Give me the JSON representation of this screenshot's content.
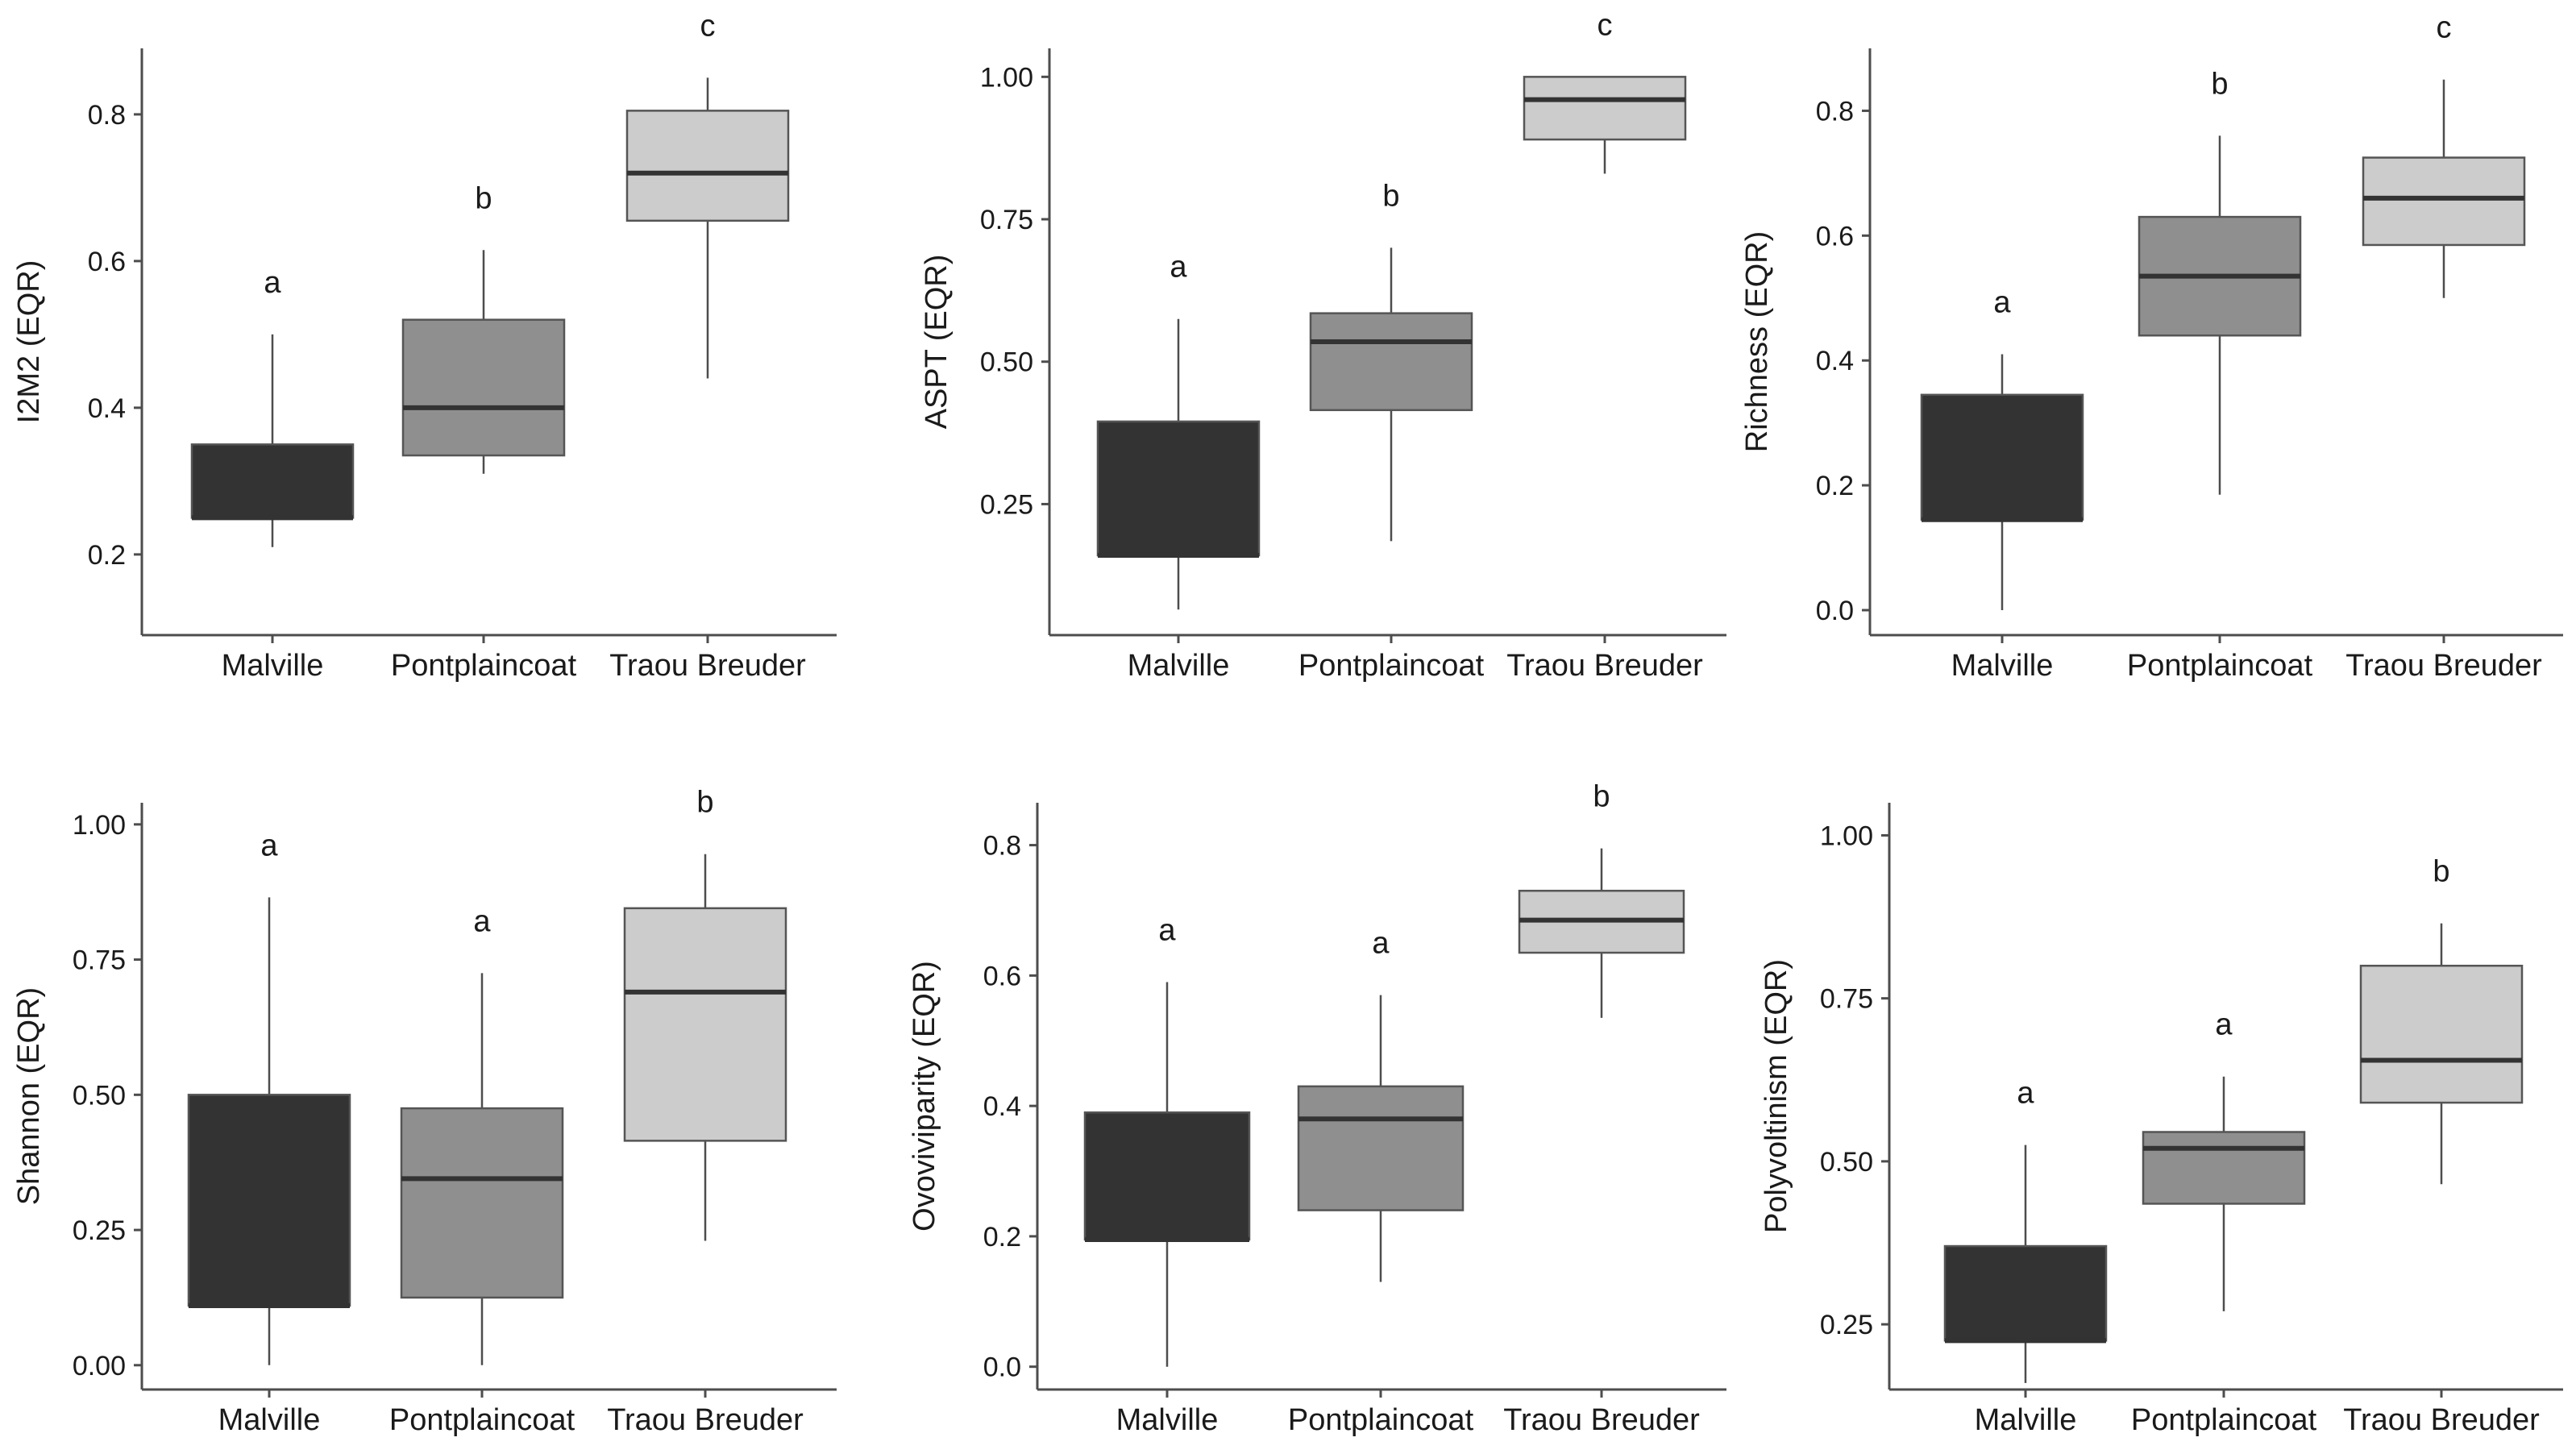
{
  "colors": {
    "Malville": "#333333",
    "Pontplaincoat": "#8f8f8f",
    "Traou Breuder": "#cccccc",
    "axis": "#4d4d4d",
    "median": "#333333"
  },
  "chart_data": [
    {
      "type": "boxplot",
      "ylabel": "I2M2 (EQR)",
      "categories": [
        "Malville",
        "Pontplaincoat",
        "Traou Breuder"
      ],
      "ylim": [
        0.09,
        0.89
      ],
      "yticks": [
        0.2,
        0.4,
        0.6,
        0.8
      ],
      "yticklabels": [
        "0.2",
        "0.4",
        "0.6",
        "0.8"
      ],
      "boxes": [
        {
          "min": 0.21,
          "q1": 0.25,
          "median": 0.25,
          "q3": 0.35,
          "max": 0.5
        },
        {
          "min": 0.31,
          "q1": 0.335,
          "median": 0.4,
          "q3": 0.52,
          "max": 0.615
        },
        {
          "min": 0.44,
          "q1": 0.655,
          "median": 0.72,
          "q3": 0.805,
          "max": 0.85
        }
      ],
      "letters": [
        "a",
        "b",
        "c"
      ]
    },
    {
      "type": "boxplot",
      "ylabel": "ASPT (EQR)",
      "categories": [
        "Malville",
        "Pontplaincoat",
        "Traou Breuder"
      ],
      "ylim": [
        0.02,
        1.05
      ],
      "yticks": [
        0.25,
        0.5,
        0.75,
        1.0
      ],
      "yticklabels": [
        "0.25",
        "0.50",
        "0.75",
        "1.00"
      ],
      "boxes": [
        {
          "min": 0.065,
          "q1": 0.16,
          "median": 0.16,
          "q3": 0.395,
          "max": 0.575
        },
        {
          "min": 0.185,
          "q1": 0.415,
          "median": 0.535,
          "q3": 0.585,
          "max": 0.7
        },
        {
          "min": 0.83,
          "q1": 0.89,
          "median": 0.96,
          "q3": 1.0,
          "max": 1.0
        }
      ],
      "letters": [
        "a",
        "b",
        "c"
      ]
    },
    {
      "type": "boxplot",
      "ylabel": "Richness (EQR)",
      "categories": [
        "Malville",
        "Pontplaincoat",
        "Traou Breuder"
      ],
      "ylim": [
        -0.04,
        0.9
      ],
      "yticks": [
        0.0,
        0.2,
        0.4,
        0.6,
        0.8
      ],
      "yticklabels": [
        "0.0",
        "0.2",
        "0.4",
        "0.6",
        "0.8"
      ],
      "boxes": [
        {
          "min": 0.0,
          "q1": 0.145,
          "median": 0.145,
          "q3": 0.345,
          "max": 0.41
        },
        {
          "min": 0.185,
          "q1": 0.44,
          "median": 0.535,
          "q3": 0.63,
          "max": 0.76
        },
        {
          "min": 0.5,
          "q1": 0.585,
          "median": 0.66,
          "q3": 0.725,
          "max": 0.85
        }
      ],
      "letters": [
        "a",
        "b",
        "c"
      ]
    },
    {
      "type": "boxplot",
      "ylabel": "Shannon (EQR)",
      "categories": [
        "Malville",
        "Pontplaincoat",
        "Traou Breuder"
      ],
      "ylim": [
        -0.045,
        1.04
      ],
      "yticks": [
        0.0,
        0.25,
        0.5,
        0.75,
        1.0
      ],
      "yticklabels": [
        "0.00",
        "0.25",
        "0.50",
        "0.75",
        "1.00"
      ],
      "boxes": [
        {
          "min": 0.0,
          "q1": 0.11,
          "median": 0.11,
          "q3": 0.5,
          "max": 0.865
        },
        {
          "min": 0.0,
          "q1": 0.125,
          "median": 0.345,
          "q3": 0.475,
          "max": 0.725
        },
        {
          "min": 0.23,
          "q1": 0.415,
          "median": 0.69,
          "q3": 0.845,
          "max": 0.945
        }
      ],
      "letters": [
        "a",
        "a",
        "b"
      ]
    },
    {
      "type": "boxplot",
      "ylabel": "Ovoviviparity (EQR)",
      "categories": [
        "Malville",
        "Pontplaincoat",
        "Traou Breuder"
      ],
      "ylim": [
        -0.035,
        0.865
      ],
      "yticks": [
        0.0,
        0.2,
        0.4,
        0.6,
        0.8
      ],
      "yticklabels": [
        "0.0",
        "0.2",
        "0.4",
        "0.6",
        "0.8"
      ],
      "boxes": [
        {
          "min": 0.0,
          "q1": 0.195,
          "median": 0.195,
          "q3": 0.39,
          "max": 0.59
        },
        {
          "min": 0.13,
          "q1": 0.24,
          "median": 0.38,
          "q3": 0.43,
          "max": 0.57
        },
        {
          "min": 0.535,
          "q1": 0.635,
          "median": 0.685,
          "q3": 0.73,
          "max": 0.795
        }
      ],
      "letters": [
        "a",
        "a",
        "b"
      ]
    },
    {
      "type": "boxplot",
      "ylabel": "Polyvoltinism (EQR)",
      "categories": [
        "Malville",
        "Pontplaincoat",
        "Traou Breuder"
      ],
      "ylim": [
        0.15,
        1.05
      ],
      "yticks": [
        0.25,
        0.5,
        0.75,
        1.0
      ],
      "yticklabels": [
        "0.25",
        "0.50",
        "0.75",
        "1.00"
      ],
      "boxes": [
        {
          "min": 0.16,
          "q1": 0.225,
          "median": 0.225,
          "q3": 0.37,
          "max": 0.525
        },
        {
          "min": 0.27,
          "q1": 0.435,
          "median": 0.52,
          "q3": 0.545,
          "max": 0.63
        },
        {
          "min": 0.465,
          "q1": 0.59,
          "median": 0.655,
          "q3": 0.8,
          "max": 0.865
        }
      ],
      "letters": [
        "a",
        "a",
        "b"
      ]
    }
  ]
}
